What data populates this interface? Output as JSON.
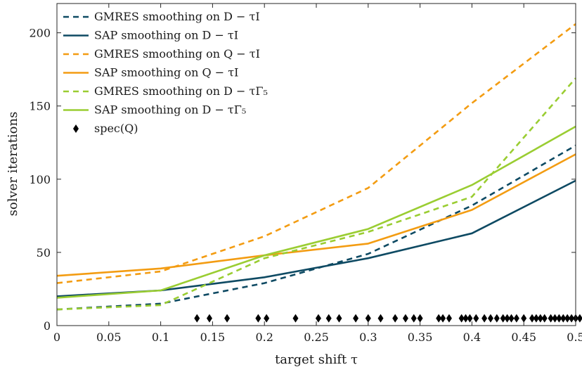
{
  "chart_data": {
    "type": "line",
    "xlabel": "target shift τ",
    "ylabel": "solver iterations",
    "xlim": [
      0,
      0.5
    ],
    "ylim": [
      0,
      220
    ],
    "xticks": [
      0,
      0.05,
      0.1,
      0.15,
      0.2,
      0.25,
      0.3,
      0.35,
      0.4,
      0.45,
      0.5
    ],
    "xtick_labels": [
      "0",
      "0.05",
      "0.1",
      "0.15",
      "0.2",
      "0.25",
      "0.3",
      "0.35",
      "0.4",
      "0.45",
      "0.5"
    ],
    "yticks": [
      0,
      50,
      100,
      150,
      200
    ],
    "ytick_labels": [
      "0",
      "50",
      "100",
      "150",
      "200"
    ],
    "legend_position": "top-left",
    "x": [
      0,
      0.1,
      0.2,
      0.3,
      0.4,
      0.5
    ],
    "series": [
      {
        "name": "GMRES smoothing on D − τI",
        "color": "#0e4a63",
        "style": "dashed",
        "values": [
          11,
          15,
          29,
          49,
          82,
          123
        ]
      },
      {
        "name": "SAP smoothing on D − τI",
        "color": "#0e4a63",
        "style": "solid",
        "values": [
          20,
          24,
          33,
          46,
          63,
          99
        ]
      },
      {
        "name": "GMRES smoothing on Q − τI",
        "color": "#f39c12",
        "style": "dashed",
        "values": [
          29,
          37,
          61,
          94,
          152,
          206
        ]
      },
      {
        "name": "SAP smoothing on Q − τI",
        "color": "#f39c12",
        "style": "solid",
        "values": [
          34,
          39,
          48,
          56,
          79,
          117
        ]
      },
      {
        "name": "GMRES smoothing on D − τΓ₅",
        "color": "#9acd32",
        "style": "dashed",
        "values": [
          11,
          14,
          46,
          64,
          88,
          169
        ]
      },
      {
        "name": "SAP smoothing on D − τΓ₅",
        "color": "#9acd32",
        "style": "solid",
        "values": [
          19,
          24,
          48,
          66,
          96,
          136
        ]
      }
    ],
    "spec_series": {
      "name": "spec(Q)",
      "color": "#000000",
      "marker": "diamond",
      "y": 5,
      "x": [
        0.135,
        0.147,
        0.164,
        0.194,
        0.202,
        0.23,
        0.252,
        0.262,
        0.272,
        0.288,
        0.3,
        0.312,
        0.326,
        0.336,
        0.344,
        0.35,
        0.368,
        0.372,
        0.378,
        0.39,
        0.394,
        0.398,
        0.404,
        0.412,
        0.418,
        0.424,
        0.43,
        0.434,
        0.438,
        0.443,
        0.45,
        0.458,
        0.462,
        0.466,
        0.47,
        0.476,
        0.48,
        0.484,
        0.488,
        0.492,
        0.496,
        0.5,
        0.504
      ]
    }
  }
}
